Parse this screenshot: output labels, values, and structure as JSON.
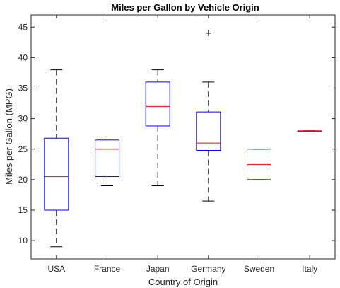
{
  "chart_data": {
    "type": "box",
    "title": "Miles per Gallon by Vehicle Origin",
    "xlabel": "Country of Origin",
    "ylabel": "Miles per Gallon (MPG)",
    "ylim": [
      7,
      47
    ],
    "yticks": [
      10,
      15,
      20,
      25,
      30,
      35,
      40,
      45
    ],
    "categories": [
      "USA",
      "France",
      "Japan",
      "Germany",
      "Sweden",
      "Italy"
    ],
    "boxes": [
      {
        "category": "USA",
        "whisker_low": 9,
        "q1": 15,
        "median": 20.5,
        "q3": 26.8,
        "whisker_high": 38,
        "outliers": []
      },
      {
        "category": "France",
        "whisker_low": 19,
        "q1": 20.5,
        "median": 25,
        "q3": 26.5,
        "whisker_high": 27,
        "outliers": []
      },
      {
        "category": "Japan",
        "whisker_low": 19,
        "q1": 28.8,
        "median": 32,
        "q3": 36,
        "whisker_high": 38,
        "outliers": []
      },
      {
        "category": "Germany",
        "whisker_low": 16.5,
        "q1": 24.8,
        "median": 26,
        "q3": 31.1,
        "whisker_high": 36,
        "outliers": [
          44
        ]
      },
      {
        "category": "Sweden",
        "whisker_low": 20,
        "q1": 20,
        "median": 22.5,
        "q3": 25,
        "whisker_high": 25,
        "outliers": []
      },
      {
        "category": "Italy",
        "whisker_low": 28,
        "q1": 28,
        "median": 28,
        "q3": 28,
        "whisker_high": 28,
        "outliers": []
      }
    ],
    "grid": false,
    "colors": {
      "box": "#0000ff",
      "median": "#ff0000",
      "whisker": "#000000",
      "outlier": "#000000",
      "axes": "#262626"
    }
  }
}
